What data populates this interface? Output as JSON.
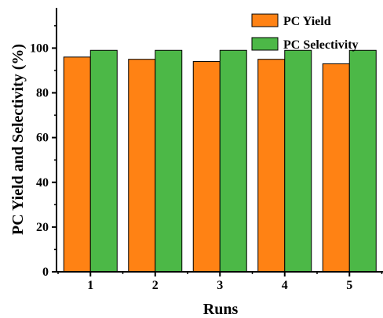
{
  "chart_data": {
    "type": "bar",
    "xlabel": "Runs",
    "ylabel": "PC Yield and Selectivity (%)",
    "categories": [
      "1",
      "2",
      "3",
      "4",
      "5"
    ],
    "ylim": [
      0,
      118
    ],
    "yticks": [
      0,
      20,
      40,
      60,
      80,
      100
    ],
    "grid": false,
    "legend_position": "top-right",
    "series": [
      {
        "name": "PC Yield",
        "color": "#ff8214",
        "values": [
          96,
          95,
          94,
          95,
          93
        ]
      },
      {
        "name": "PC Selectivity",
        "color": "#4cb847",
        "values": [
          99,
          99,
          99,
          99,
          99
        ]
      }
    ]
  }
}
